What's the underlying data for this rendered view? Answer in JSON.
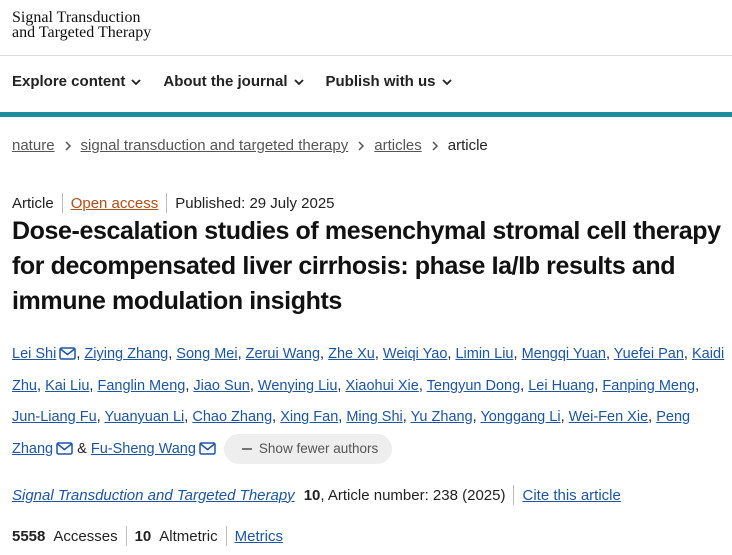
{
  "header": {
    "logo": [
      "Signal Transduction",
      "and Targeted Therapy"
    ]
  },
  "nav": [
    "Explore content",
    "About the journal",
    "Publish with us"
  ],
  "breadcrumb": [
    "nature",
    "signal transduction and targeted therapy",
    "articles",
    "article"
  ],
  "article": {
    "type": "Article",
    "access": "Open access",
    "published": "Published: 29 July 2025",
    "title": "Dose-escalation studies of mesenchymal stromal cell therapy for decompensated liver cirrhosis: phase Ia/Ib results and immune modulation insights",
    "authors": [
      {
        "name": "Lei Shi",
        "email": true
      },
      {
        "name": "Ziying Zhang"
      },
      {
        "name": "Song Mei"
      },
      {
        "name": "Zerui Wang"
      },
      {
        "name": "Zhe Xu"
      },
      {
        "name": "Weiqi Yao"
      },
      {
        "name": "Limin Liu"
      },
      {
        "name": "Mengqi Yuan"
      },
      {
        "name": "Yuefei Pan"
      },
      {
        "name": "Kaidi Zhu"
      },
      {
        "name": "Kai Liu"
      },
      {
        "name": "Fanglin Meng"
      },
      {
        "name": "Jiao Sun"
      },
      {
        "name": "Wenying Liu"
      },
      {
        "name": "Xiaohui Xie"
      },
      {
        "name": "Tengyun Dong"
      },
      {
        "name": "Lei Huang"
      },
      {
        "name": "Fanping Meng"
      },
      {
        "name": "Jun-Liang Fu"
      },
      {
        "name": "Yuanyuan Li"
      },
      {
        "name": "Chao Zhang"
      },
      {
        "name": "Xing Fan"
      },
      {
        "name": "Ming Shi"
      },
      {
        "name": "Yu Zhang"
      },
      {
        "name": "Yonggang Li"
      },
      {
        "name": "Wei-Fen Xie"
      },
      {
        "name": "Peng Zhang",
        "email": true
      },
      {
        "name": "Fu-Sheng Wang",
        "email": true
      }
    ],
    "separator": ",",
    "conjunction": "&",
    "show_fewer": "Show fewer authors",
    "journal": "Signal Transduction and Targeted Therapy",
    "volume": 10,
    "article_number": ", Article number: 238 (2025)",
    "cite": "Cite this article"
  },
  "metrics": {
    "accesses": 5558,
    "accesses_label": "Accesses",
    "altmetric": 10,
    "altmetric_label": "Altmetric",
    "metrics_link": "Metrics"
  }
}
